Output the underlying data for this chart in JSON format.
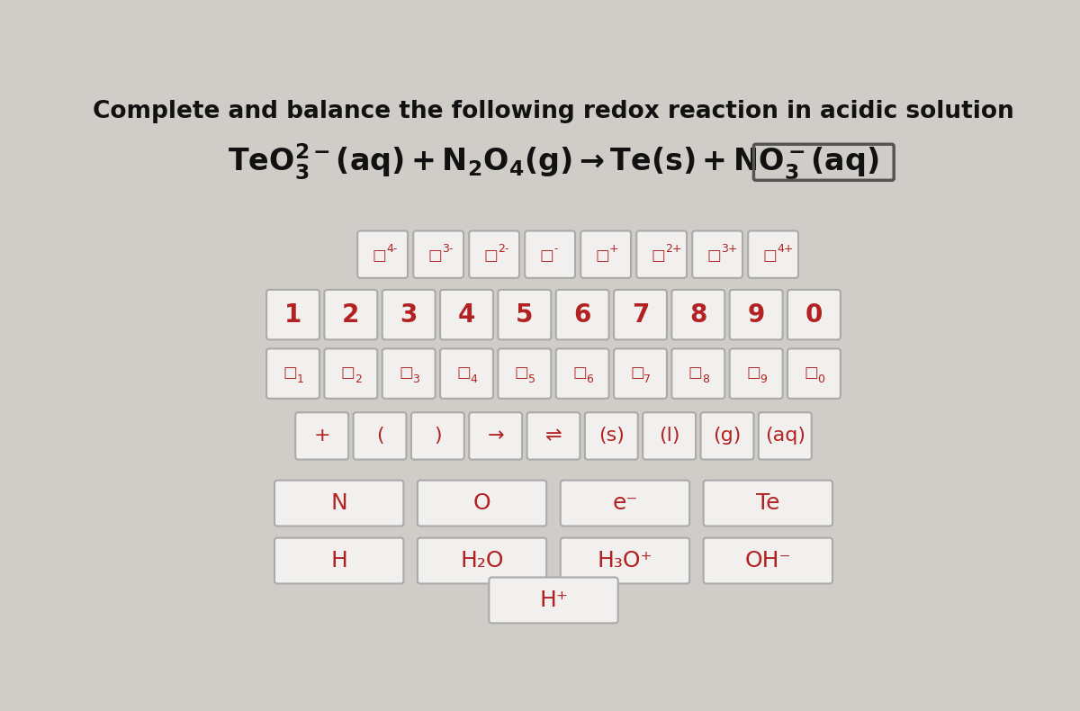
{
  "title": "Complete and balance the following redox reaction in acidic solution",
  "bg_color": "#d0cdc8",
  "panel_bg": "#d0cdc8",
  "title_color": "#111111",
  "title_fontsize": 19,
  "key_bg": "#f2f0ee",
  "key_bg_dark": "#e8e5e0",
  "key_text_color": "#b22222",
  "key_border_color": "#aaaaaa",
  "row1_charges": [
    "4-",
    "3-",
    "2-",
    "-",
    "+",
    "2+",
    "3+",
    "4+"
  ],
  "row2_nums": [
    "1",
    "2",
    "3",
    "4",
    "5",
    "6",
    "7",
    "8",
    "9",
    "0"
  ],
  "row3_subs": [
    "1",
    "2",
    "3",
    "4",
    "5",
    "6",
    "7",
    "8",
    "9",
    "0"
  ],
  "row4_ops": [
    "+",
    "(",
    ")",
    "→",
    "⇌",
    "(s)",
    "(l)",
    "(g)",
    "(aq)"
  ],
  "row5_elems": [
    "N",
    "O",
    "e⁻",
    "Te"
  ],
  "row6_compounds": [
    "H",
    "H₂O",
    "H₃O⁺",
    "OH⁻"
  ],
  "row7_single": [
    "H⁺"
  ],
  "eq_teo3": "TeO",
  "eq_rest": "(aq) + N",
  "highlighted_key_idx": 8
}
